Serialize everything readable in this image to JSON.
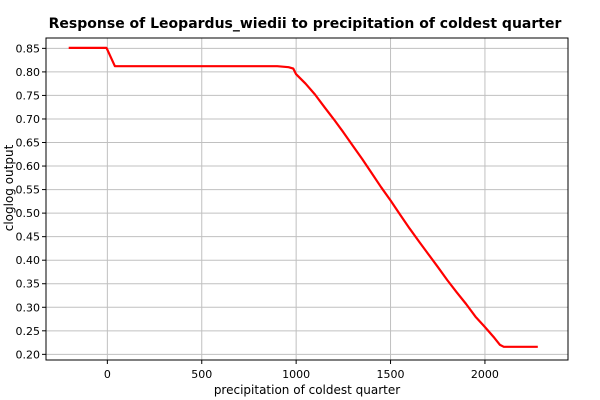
{
  "chart_data": {
    "type": "line",
    "title": "Response of Leopardus_wiedii to precipitation of coldest quarter",
    "xlabel": "precipitation of coldest quarter",
    "ylabel": "cloglog output",
    "xlim": [
      -325,
      2440
    ],
    "ylim": [
      0.188,
      0.872
    ],
    "xticks": [
      0,
      500,
      1000,
      1500,
      2000
    ],
    "yticks": [
      0.2,
      0.25,
      0.3,
      0.35,
      0.4,
      0.45,
      0.5,
      0.55,
      0.6,
      0.65,
      0.7,
      0.75,
      0.8,
      0.85
    ],
    "x_tick_labels": [
      "0",
      "500",
      "1000",
      "1500",
      "2000"
    ],
    "y_tick_labels": [
      "0.20",
      "0.25",
      "0.30",
      "0.35",
      "0.40",
      "0.45",
      "0.50",
      "0.55",
      "0.60",
      "0.65",
      "0.70",
      "0.75",
      "0.80",
      "0.85"
    ],
    "grid": true,
    "colors": {
      "line": "#ff0000",
      "grid": "#c0c0c0",
      "frame": "#000000"
    },
    "series": [
      {
        "x": [
          -205,
          -5,
          0,
          40,
          900,
          960,
          985,
          1000,
          1050,
          1100,
          1150,
          1200,
          1250,
          1300,
          1350,
          1400,
          1450,
          1500,
          1550,
          1600,
          1650,
          1700,
          1750,
          1800,
          1850,
          1900,
          1950,
          2000,
          2050,
          2080,
          2100,
          2150,
          2200,
          2280
        ],
        "y": [
          0.851,
          0.851,
          0.847,
          0.812,
          0.812,
          0.81,
          0.807,
          0.795,
          0.775,
          0.752,
          0.725,
          0.699,
          0.672,
          0.643,
          0.615,
          0.585,
          0.555,
          0.527,
          0.497,
          0.468,
          0.44,
          0.413,
          0.386,
          0.358,
          0.332,
          0.307,
          0.28,
          0.258,
          0.235,
          0.22,
          0.216,
          0.216,
          0.216,
          0.216
        ]
      }
    ]
  }
}
